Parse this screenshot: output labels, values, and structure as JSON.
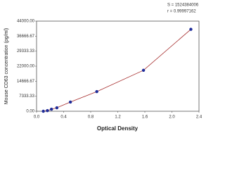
{
  "chart_data": {
    "type": "scatter",
    "x_label": "Optical Density",
    "y_label": "Mouse CD63 concentration (pg/ml)",
    "annotations": [
      "S = 1524384006",
      "r = 0.99997162"
    ],
    "x": [
      0.1,
      0.16,
      0.22,
      0.3,
      0.5,
      0.89,
      1.58,
      2.28
    ],
    "values": [
      0,
      300,
      1000,
      1700,
      4500,
      9600,
      20000,
      40000
    ],
    "color": "#1f2d9a",
    "line_color": "#a52a2a",
    "xlim": [
      0,
      2.4
    ],
    "xticks": [
      {
        "value": 0,
        "label": "0.0"
      },
      0.4,
      0.8,
      1.2,
      1.6,
      {
        "value": 2,
        "label": "2.0"
      },
      2.4
    ],
    "ylim": [
      0,
      44000
    ],
    "yticks": [
      {
        "value": 0,
        "label": "0.00"
      },
      {
        "value": 7333.33,
        "label": "7333.33"
      },
      {
        "value": 14666.67,
        "label": "14666.67"
      },
      {
        "value": 22000,
        "label": "22000.00"
      },
      {
        "value": 29333.33,
        "label": "29333.33"
      },
      {
        "value": 36666.67,
        "label": "36666.67"
      },
      {
        "value": 44000,
        "label": "44000.00"
      }
    ]
  }
}
